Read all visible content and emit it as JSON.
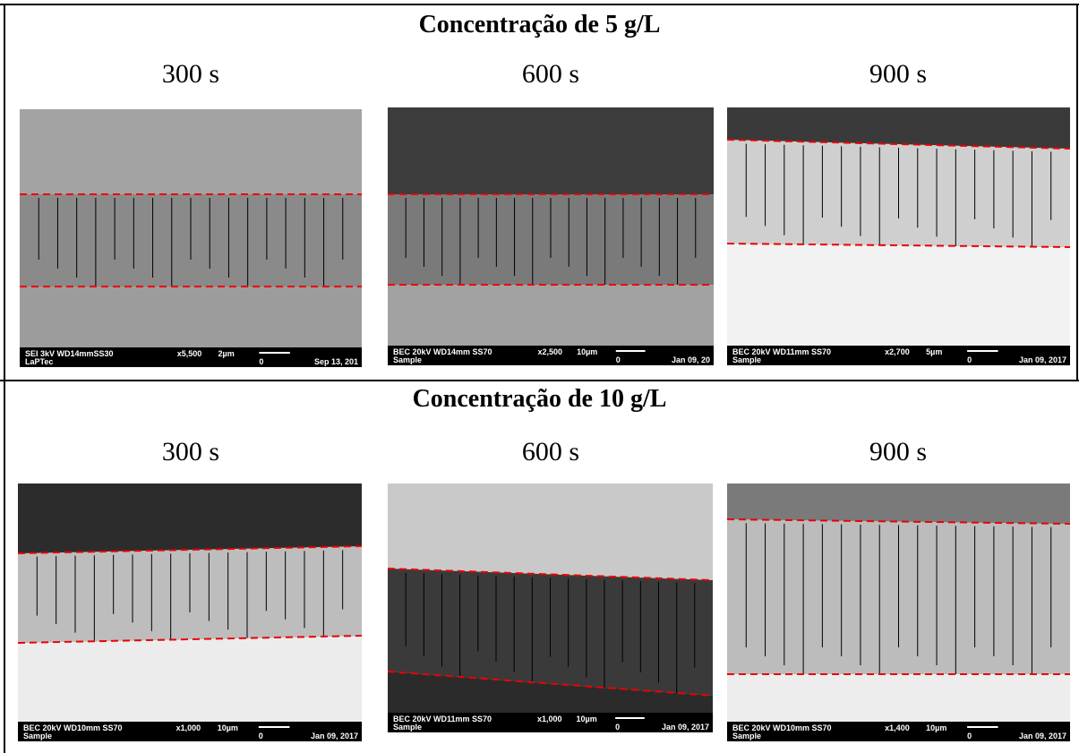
{
  "sections": [
    {
      "title": "Concentração de 5 g/L",
      "panels": [
        {
          "time": "300 s",
          "info": {
            "line1": "SEI 3kV   WD14mmSS30",
            "line2": "LaPTec",
            "magnification": "x5,500",
            "scale": "2µm",
            "zero": "0",
            "date": "Sep 13, 201"
          }
        },
        {
          "time": "600 s",
          "info": {
            "line1": "BEC 20kV   WD14mm SS70",
            "line2": "Sample",
            "magnification": "x2,500",
            "scale": "10µm",
            "zero": "0",
            "date": "Jan 09, 20"
          }
        },
        {
          "time": "900 s",
          "info": {
            "line1": "BEC 20kV   WD11mm SS70",
            "line2": "Sample",
            "magnification": "x2,700",
            "scale": "5µm",
            "zero": "0",
            "date": "Jan 09, 2017"
          }
        }
      ]
    },
    {
      "title": "Concentração de 10 g/L",
      "panels": [
        {
          "time": "300 s",
          "info": {
            "line1": "BEC 20kV   WD10mm SS70",
            "line2": "Sample",
            "magnification": "x1,000",
            "scale": "10µm",
            "zero": "0",
            "date": "Jan 09, 2017"
          }
        },
        {
          "time": "600 s",
          "info": {
            "line1": "BEC 20kV   WD11mm SS70",
            "line2": "Sample",
            "magnification": "x1,000",
            "scale": "10µm",
            "zero": "0",
            "date": "Jan 09, 2017"
          }
        },
        {
          "time": "900 s",
          "info": {
            "line1": "BEC 20kV   WD10mm SS70",
            "line2": "Sample",
            "magnification": "x1,400",
            "scale": "10µm",
            "zero": "0",
            "date": "Jan 09, 2017"
          }
        }
      ]
    }
  ]
}
